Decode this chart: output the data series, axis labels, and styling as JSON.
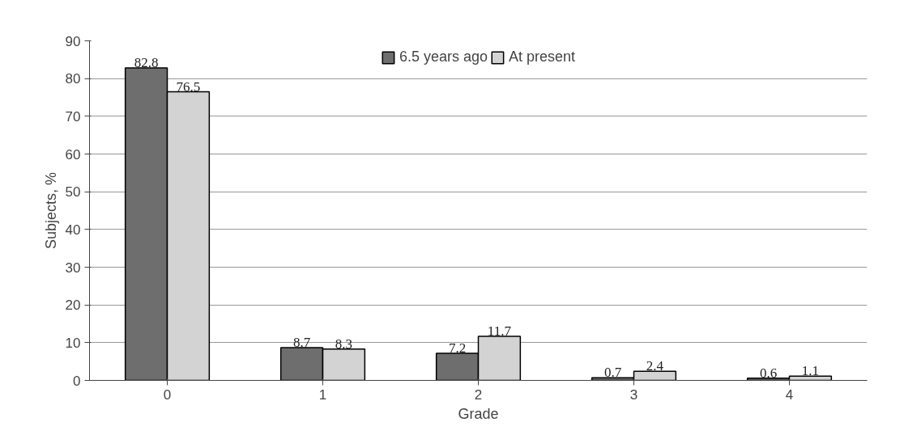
{
  "chart_data": {
    "type": "bar",
    "xlabel": "Grade",
    "ylabel": "Subjects, %",
    "categories": [
      "0",
      "1",
      "2",
      "3",
      "4"
    ],
    "series": [
      {
        "name": "6.5 years ago",
        "color": "#6e6e6e",
        "values": [
          82.8,
          8.7,
          7.2,
          0.7,
          0.6
        ]
      },
      {
        "name": "At present",
        "color": "#d3d3d3",
        "values": [
          76.5,
          8.3,
          11.7,
          2.4,
          1.1
        ]
      }
    ],
    "ylim": [
      0,
      90
    ],
    "yticks": [
      0,
      10,
      20,
      30,
      40,
      50,
      60,
      70,
      80,
      90
    ],
    "grid": "y",
    "legend": "top",
    "data_labels": true
  }
}
